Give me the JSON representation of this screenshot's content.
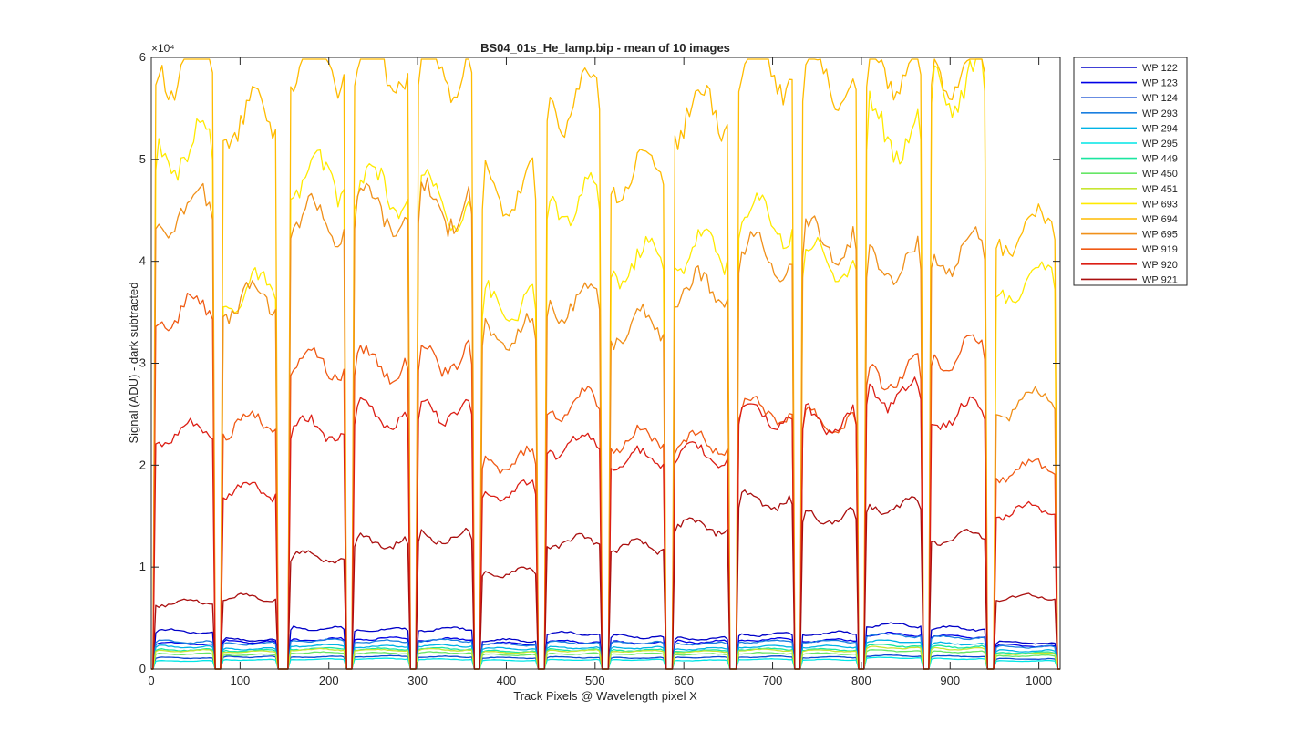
{
  "chart_data": {
    "type": "line",
    "title": "BS04_01s_He_lamp.bip - mean of 10 images",
    "xlabel": "Track Pixels @ Wavelength pixel X",
    "ylabel": "Signal (ADU) - dark subtracted",
    "y_exponent_label": "×10⁴",
    "xlim": [
      0,
      1024
    ],
    "ylim": [
      0,
      60000
    ],
    "xticks": [
      0,
      100,
      200,
      300,
      400,
      500,
      600,
      700,
      800,
      900,
      1000
    ],
    "yticks": [
      0,
      10000,
      20000,
      30000,
      40000,
      50000,
      60000
    ],
    "ytick_labels": [
      "0",
      "1",
      "2",
      "3",
      "4",
      "5",
      "6"
    ],
    "grid": false,
    "legend_position": "outside-top-right",
    "tracks": [
      [
        2,
        72
      ],
      [
        78,
        143
      ],
      [
        154,
        220
      ],
      [
        226,
        292
      ],
      [
        298,
        364
      ],
      [
        370,
        436
      ],
      [
        443,
        508
      ],
      [
        515,
        580
      ],
      [
        587,
        652
      ],
      [
        659,
        725
      ],
      [
        731,
        797
      ],
      [
        803,
        870
      ],
      [
        876,
        942
      ],
      [
        949,
        1021
      ]
    ],
    "series": [
      {
        "name": "WP 122",
        "color": "#0000C8",
        "levels": [
          3700,
          2900,
          4000,
          3850,
          3900,
          2800,
          3500,
          3200,
          3000,
          3400,
          3500,
          4300,
          4000,
          2600
        ]
      },
      {
        "name": "WP 123",
        "color": "#0000E6",
        "levels": [
          2500,
          2700,
          2900,
          3000,
          2900,
          2500,
          2700,
          2600,
          2700,
          2900,
          2800,
          3400,
          3200,
          2300
        ]
      },
      {
        "name": "WP 124",
        "color": "#0D47D0",
        "levels": [
          1100,
          1200,
          1200,
          1250,
          1200,
          1100,
          1150,
          1100,
          1150,
          1200,
          1150,
          1300,
          1250,
          1000
        ]
      },
      {
        "name": "WP 293",
        "color": "#1A7FE0",
        "levels": [
          2700,
          2500,
          2800,
          2700,
          2800,
          2400,
          2600,
          2600,
          2500,
          2700,
          2700,
          3300,
          3100,
          2200
        ]
      },
      {
        "name": "WP 294",
        "color": "#00B4E6",
        "levels": [
          2200,
          2000,
          2300,
          2200,
          2300,
          2000,
          2100,
          2100,
          2000,
          2200,
          2200,
          2700,
          2500,
          1800
        ]
      },
      {
        "name": "WP 295",
        "color": "#00E6E6",
        "levels": [
          800,
          900,
          950,
          1000,
          950,
          850,
          900,
          900,
          850,
          950,
          900,
          1100,
          1000,
          800
        ]
      },
      {
        "name": "WP 449",
        "color": "#1AE6A0",
        "levels": [
          1900,
          1800,
          2000,
          1950,
          2000,
          1750,
          1900,
          1850,
          1800,
          1950,
          1900,
          2300,
          2200,
          1600
        ]
      },
      {
        "name": "WP 450",
        "color": "#66E666",
        "levels": [
          1500,
          1400,
          1600,
          1550,
          1600,
          1400,
          1500,
          1500,
          1450,
          1550,
          1500,
          1800,
          1700,
          1300
        ]
      },
      {
        "name": "WP 451",
        "color": "#C8E632",
        "levels": [
          1800,
          1700,
          1900,
          1850,
          1900,
          1650,
          1800,
          1750,
          1700,
          1850,
          1800,
          2100,
          2000,
          1500
        ]
      },
      {
        "name": "WP 693",
        "color": "#FFEA00",
        "levels": [
          51000,
          37000,
          48000,
          47000,
          46000,
          36000,
          46000,
          40000,
          41000,
          44000,
          40000,
          53000,
          57800,
          38000
        ]
      },
      {
        "name": "WP 694",
        "color": "#FFBB00",
        "levels": [
          59700,
          54000,
          59500,
          59600,
          59700,
          47000,
          56000,
          48500,
          54500,
          59000,
          58000,
          59500,
          59700,
          43000
        ]
      },
      {
        "name": "WP 695",
        "color": "#F0901A",
        "levels": [
          45000,
          36000,
          44000,
          45000,
          45500,
          33000,
          36000,
          33500,
          37000,
          40500,
          42000,
          40000,
          41000,
          26000
        ]
      },
      {
        "name": "WP 919",
        "color": "#F05A14",
        "levels": [
          35000,
          24000,
          30000,
          30000,
          30500,
          20500,
          26000,
          22500,
          22000,
          25500,
          24500,
          29000,
          31000,
          19500
        ]
      },
      {
        "name": "WP 920",
        "color": "#DC1E14",
        "levels": [
          23000,
          17500,
          23500,
          25000,
          25500,
          17500,
          22000,
          20500,
          21000,
          25000,
          24500,
          27000,
          25000,
          15500
        ]
      },
      {
        "name": "WP 921",
        "color": "#AA0F0F",
        "levels": [
          6500,
          7000,
          11000,
          12500,
          13000,
          9500,
          12500,
          12000,
          14000,
          16500,
          15000,
          16000,
          13000,
          7000
        ]
      }
    ]
  }
}
